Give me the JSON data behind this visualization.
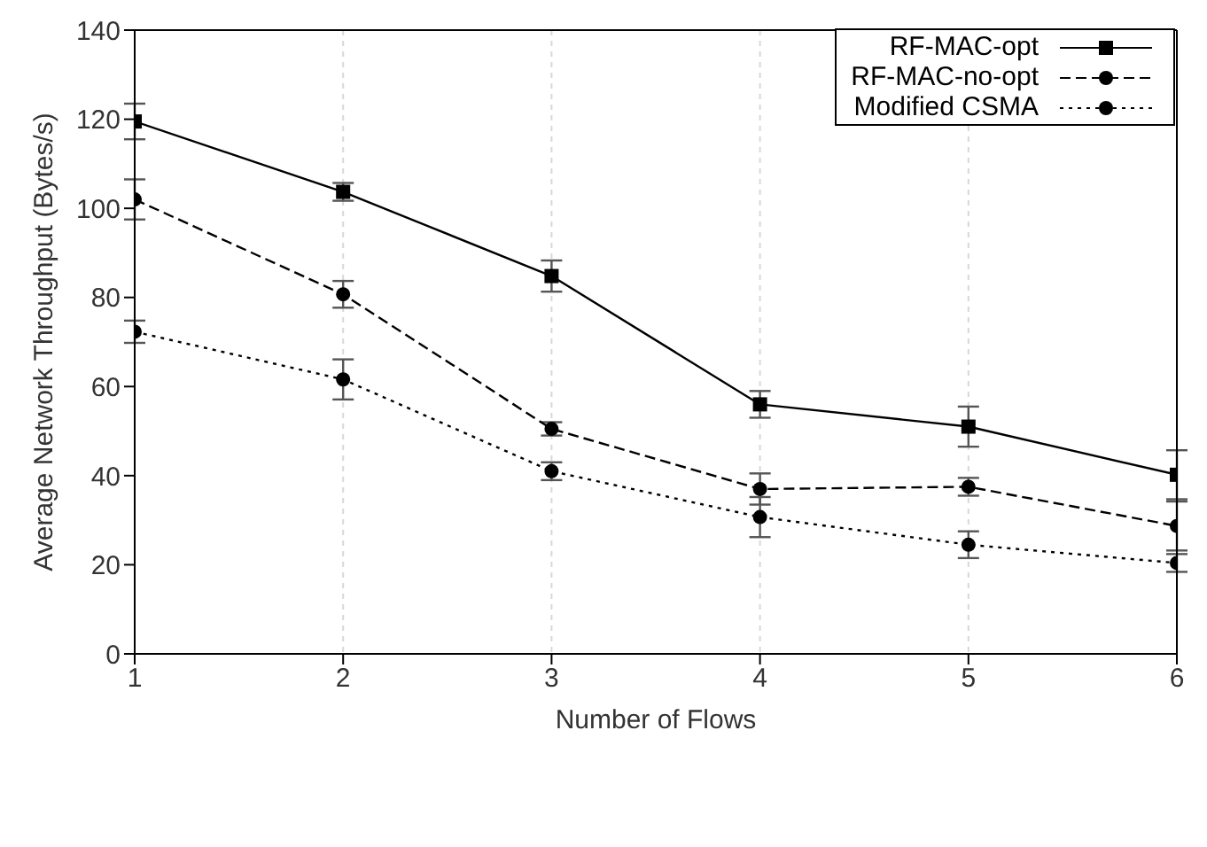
{
  "chart_data": {
    "type": "line",
    "xlabel": "Number of Flows",
    "ylabel": "Average Network Throughput (Bytes/s)",
    "x": [
      1,
      2,
      3,
      4,
      5,
      6
    ],
    "xlim": [
      1,
      6
    ],
    "xticks": [
      1,
      2,
      3,
      4,
      5,
      6
    ],
    "ylim": [
      0,
      140
    ],
    "yticks": [
      0,
      20,
      40,
      60,
      80,
      100,
      120,
      140
    ],
    "grid": true,
    "legend": "top right",
    "series": [
      {
        "name": "RF-MAC-opt",
        "color": "#000000",
        "marker": "square",
        "line_style": "solid",
        "values": [
          119.5,
          103.7,
          84.8,
          56,
          51,
          40.2
        ],
        "errors": [
          4,
          2,
          3.5,
          3,
          4.5,
          5.5
        ]
      },
      {
        "name": "RF-MAC-no-opt",
        "color": "#000000",
        "marker": "circle",
        "line_style": "dashed",
        "values": [
          102,
          80.7,
          50.5,
          37,
          37.5,
          28.7
        ],
        "errors": [
          4.5,
          3,
          1.5,
          3.5,
          2,
          5.5
        ]
      },
      {
        "name": "Modified CSMA",
        "color": "#000000",
        "marker": "circle",
        "line_style": "dotted",
        "values": [
          72.3,
          61.6,
          41,
          30.7,
          24.5,
          20.4
        ],
        "errors": [
          2.5,
          4.5,
          2,
          4.5,
          3,
          2
        ]
      }
    ]
  }
}
